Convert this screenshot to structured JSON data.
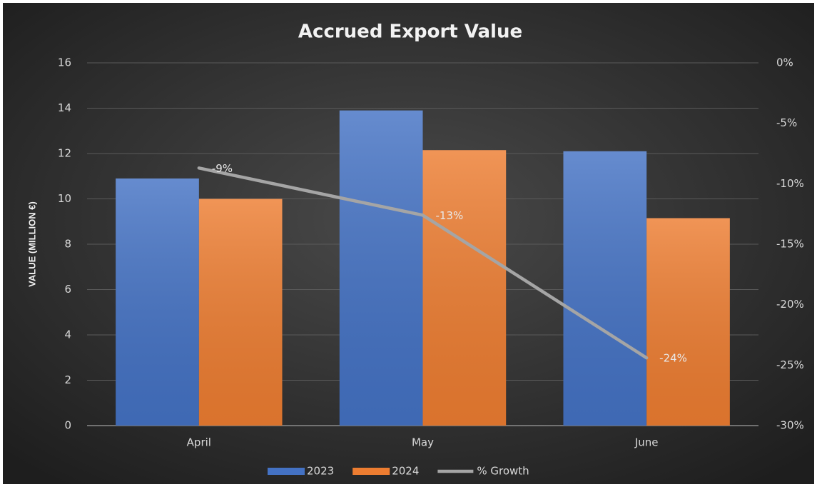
{
  "chart_data": {
    "type": "bar",
    "title": "Accrued Export Value",
    "ylabel": "VALUE (MILLION €)",
    "categories": [
      "April",
      "May",
      "June"
    ],
    "series": [
      {
        "name": "2023",
        "color": "#4472c4",
        "values": [
          10.9,
          13.9,
          12.1
        ]
      },
      {
        "name": "2024",
        "color": "#ed7d31",
        "values": [
          10.0,
          12.15,
          9.15
        ]
      },
      {
        "name": "% Growth",
        "color": "#a5a5a5",
        "type": "line",
        "axis": "y2",
        "values": [
          -8.7,
          -12.6,
          -24.4
        ],
        "value_labels": [
          "-9%",
          "-13%",
          "-24%"
        ]
      }
    ],
    "ylim": [
      0,
      16
    ],
    "yticks": [
      0,
      2,
      4,
      6,
      8,
      10,
      12,
      14,
      16
    ],
    "y2lim": [
      -30,
      0
    ],
    "y2ticks": [
      {
        "value": 0,
        "label": "0%"
      },
      {
        "value": -5,
        "label": "-5%"
      },
      {
        "value": -10,
        "label": "-10%"
      },
      {
        "value": -15,
        "label": "-15%"
      },
      {
        "value": -20,
        "label": "-20%"
      },
      {
        "value": -25,
        "label": "-25%"
      },
      {
        "value": -30,
        "label": "-30%"
      }
    ],
    "grid": true,
    "legend": "bottom"
  }
}
